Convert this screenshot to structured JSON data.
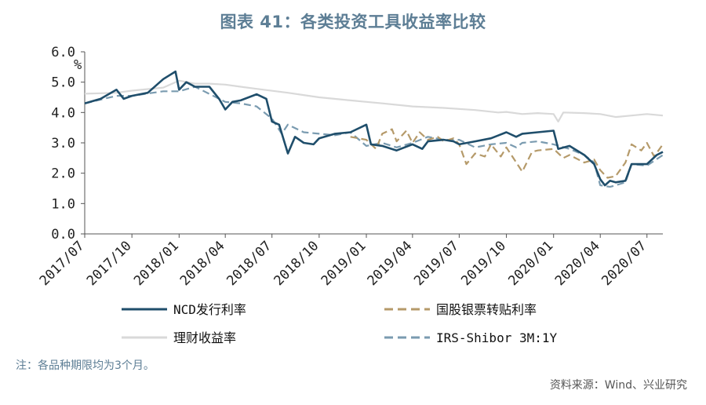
{
  "title": "图表 41：各类投资工具收益率比较",
  "note": "注：各品种期限均为3个月。",
  "source": "资料来源：Wind、兴业研究",
  "chart_data": {
    "type": "line",
    "ylabel": "%",
    "ylim": [
      0,
      6
    ],
    "yticks": [
      "0.0",
      "1.0",
      "2.0",
      "3.0",
      "4.0",
      "5.0",
      "6.0"
    ],
    "x_range": [
      "2017-07",
      "2020-08"
    ],
    "xticks": [
      "2017/07",
      "2017/10",
      "2018/01",
      "2018/04",
      "2018/07",
      "2018/10",
      "2019/01",
      "2019/04",
      "2019/07",
      "2019/10",
      "2020/01",
      "2020/04",
      "2020/07"
    ],
    "legend_position": "bottom",
    "series": [
      {
        "name": "NCD发行利率",
        "color": "#1f4e6b",
        "dash": "solid",
        "points": [
          [
            "2017-07",
            4.3
          ],
          [
            "2017-08",
            4.45
          ],
          [
            "2017-09",
            4.75
          ],
          [
            "2017-09-15",
            4.45
          ],
          [
            "2017-10",
            4.55
          ],
          [
            "2017-11",
            4.65
          ],
          [
            "2017-12",
            5.1
          ],
          [
            "2017-12-25",
            5.35
          ],
          [
            "2018-01",
            4.75
          ],
          [
            "2018-01-15",
            5.0
          ],
          [
            "2018-02",
            4.85
          ],
          [
            "2018-03",
            4.85
          ],
          [
            "2018-03-20",
            4.45
          ],
          [
            "2018-04",
            4.1
          ],
          [
            "2018-04-15",
            4.35
          ],
          [
            "2018-05",
            4.4
          ],
          [
            "2018-06",
            4.6
          ],
          [
            "2018-06-20",
            4.45
          ],
          [
            "2018-07",
            3.7
          ],
          [
            "2018-07-15",
            3.6
          ],
          [
            "2018-08",
            2.65
          ],
          [
            "2018-08-15",
            3.2
          ],
          [
            "2018-09",
            3.0
          ],
          [
            "2018-09-20",
            2.95
          ],
          [
            "2018-10",
            3.15
          ],
          [
            "2018-11",
            3.3
          ],
          [
            "2018-12",
            3.35
          ],
          [
            "2019-01",
            3.6
          ],
          [
            "2019-01-10",
            2.95
          ],
          [
            "2019-02",
            2.9
          ],
          [
            "2019-03",
            2.75
          ],
          [
            "2019-04",
            2.95
          ],
          [
            "2019-04-20",
            2.8
          ],
          [
            "2019-05",
            3.05
          ],
          [
            "2019-06",
            3.1
          ],
          [
            "2019-06-20",
            3.05
          ],
          [
            "2019-07",
            2.95
          ],
          [
            "2019-08",
            3.05
          ],
          [
            "2019-09",
            3.15
          ],
          [
            "2019-10",
            3.35
          ],
          [
            "2019-10-20",
            3.2
          ],
          [
            "2019-11",
            3.3
          ],
          [
            "2019-12",
            3.35
          ],
          [
            "2020-01",
            3.4
          ],
          [
            "2020-01-10",
            2.8
          ],
          [
            "2020-02",
            2.9
          ],
          [
            "2020-03",
            2.6
          ],
          [
            "2020-03-20",
            2.3
          ],
          [
            "2020-04",
            1.8
          ],
          [
            "2020-04-10",
            1.6
          ],
          [
            "2020-04-20",
            1.75
          ],
          [
            "2020-05",
            1.7
          ],
          [
            "2020-05-20",
            1.75
          ],
          [
            "2020-06",
            2.3
          ],
          [
            "2020-07",
            2.3
          ],
          [
            "2020-07-20",
            2.6
          ],
          [
            "2020-08",
            2.7
          ]
        ]
      },
      {
        "name": "国股银票转贴利率",
        "color": "#b59a6a",
        "dash": "dashed",
        "points": [
          [
            "2018-12",
            3.2
          ],
          [
            "2019-01",
            3.1
          ],
          [
            "2019-01-20",
            2.8
          ],
          [
            "2019-02",
            3.3
          ],
          [
            "2019-02-20",
            3.45
          ],
          [
            "2019-03",
            3.05
          ],
          [
            "2019-03-20",
            3.4
          ],
          [
            "2019-04",
            3.0
          ],
          [
            "2019-04-15",
            3.35
          ],
          [
            "2019-05",
            3.1
          ],
          [
            "2019-05-20",
            3.2
          ],
          [
            "2019-06",
            3.05
          ],
          [
            "2019-06-20",
            3.15
          ],
          [
            "2019-07",
            2.95
          ],
          [
            "2019-07-15",
            2.3
          ],
          [
            "2019-08",
            2.65
          ],
          [
            "2019-08-20",
            2.55
          ],
          [
            "2019-09",
            2.95
          ],
          [
            "2019-09-20",
            2.55
          ],
          [
            "2019-10",
            2.85
          ],
          [
            "2019-11",
            2.05
          ],
          [
            "2019-11-20",
            2.7
          ],
          [
            "2019-12",
            2.75
          ],
          [
            "2020-01",
            2.8
          ],
          [
            "2020-01-20",
            2.5
          ],
          [
            "2020-02",
            2.6
          ],
          [
            "2020-03",
            2.35
          ],
          [
            "2020-03-20",
            2.45
          ],
          [
            "2020-04",
            2.1
          ],
          [
            "2020-04-15",
            1.85
          ],
          [
            "2020-05",
            1.9
          ],
          [
            "2020-05-20",
            2.35
          ],
          [
            "2020-06",
            2.95
          ],
          [
            "2020-06-20",
            2.75
          ],
          [
            "2020-07",
            3.0
          ],
          [
            "2020-07-15",
            2.55
          ],
          [
            "2020-08",
            2.95
          ]
        ]
      },
      {
        "name": "理财收益率",
        "color": "#d9d9d9",
        "dash": "solid",
        "points": [
          [
            "2017-07",
            4.62
          ],
          [
            "2017-09",
            4.65
          ],
          [
            "2017-10",
            4.72
          ],
          [
            "2017-12",
            4.82
          ],
          [
            "2018-01",
            5.05
          ],
          [
            "2018-02",
            4.95
          ],
          [
            "2018-03",
            4.95
          ],
          [
            "2018-04",
            4.92
          ],
          [
            "2018-05",
            4.85
          ],
          [
            "2018-06",
            4.78
          ],
          [
            "2018-08",
            4.65
          ],
          [
            "2018-10",
            4.5
          ],
          [
            "2018-12",
            4.4
          ],
          [
            "2019-02",
            4.3
          ],
          [
            "2019-04",
            4.2
          ],
          [
            "2019-06",
            4.15
          ],
          [
            "2019-08",
            4.08
          ],
          [
            "2019-09-15",
            4.0
          ],
          [
            "2019-10",
            4.02
          ],
          [
            "2019-11",
            3.95
          ],
          [
            "2019-12",
            3.98
          ],
          [
            "2020-01",
            3.95
          ],
          [
            "2020-01-10",
            3.7
          ],
          [
            "2020-01-20",
            4.0
          ],
          [
            "2020-03",
            3.98
          ],
          [
            "2020-04",
            3.95
          ],
          [
            "2020-05",
            3.85
          ],
          [
            "2020-06",
            3.9
          ],
          [
            "2020-07",
            3.95
          ],
          [
            "2020-08",
            3.9
          ]
        ]
      },
      {
        "name": "IRS-Shibor 3M:1Y",
        "color": "#7a9bb0",
        "dash": "dashed",
        "points": [
          [
            "2017-07",
            4.3
          ],
          [
            "2017-09",
            4.55
          ],
          [
            "2017-10",
            4.55
          ],
          [
            "2017-12",
            4.7
          ],
          [
            "2018-01",
            4.7
          ],
          [
            "2018-02",
            4.85
          ],
          [
            "2018-04",
            4.35
          ],
          [
            "2018-05",
            4.3
          ],
          [
            "2018-06",
            4.2
          ],
          [
            "2018-07",
            3.8
          ],
          [
            "2018-07-20",
            3.3
          ],
          [
            "2018-08",
            3.6
          ],
          [
            "2018-09",
            3.35
          ],
          [
            "2018-10",
            3.3
          ],
          [
            "2018-11",
            3.25
          ],
          [
            "2018-12",
            3.35
          ],
          [
            "2019-01",
            2.9
          ],
          [
            "2019-02",
            3.0
          ],
          [
            "2019-03",
            2.85
          ],
          [
            "2019-04",
            3.0
          ],
          [
            "2019-05",
            3.2
          ],
          [
            "2019-06",
            3.1
          ],
          [
            "2019-07",
            3.1
          ],
          [
            "2019-08",
            2.85
          ],
          [
            "2019-09",
            2.95
          ],
          [
            "2019-10",
            3.0
          ],
          [
            "2019-10-20",
            2.85
          ],
          [
            "2019-11",
            3.0
          ],
          [
            "2019-12",
            3.05
          ],
          [
            "2020-01",
            2.95
          ],
          [
            "2020-02",
            2.8
          ],
          [
            "2020-03",
            2.6
          ],
          [
            "2020-03-20",
            2.35
          ],
          [
            "2020-04",
            1.6
          ],
          [
            "2020-04-20",
            1.55
          ],
          [
            "2020-05",
            1.6
          ],
          [
            "2020-05-20",
            1.7
          ],
          [
            "2020-06",
            2.3
          ],
          [
            "2020-07",
            2.25
          ],
          [
            "2020-08",
            2.6
          ]
        ]
      }
    ]
  }
}
